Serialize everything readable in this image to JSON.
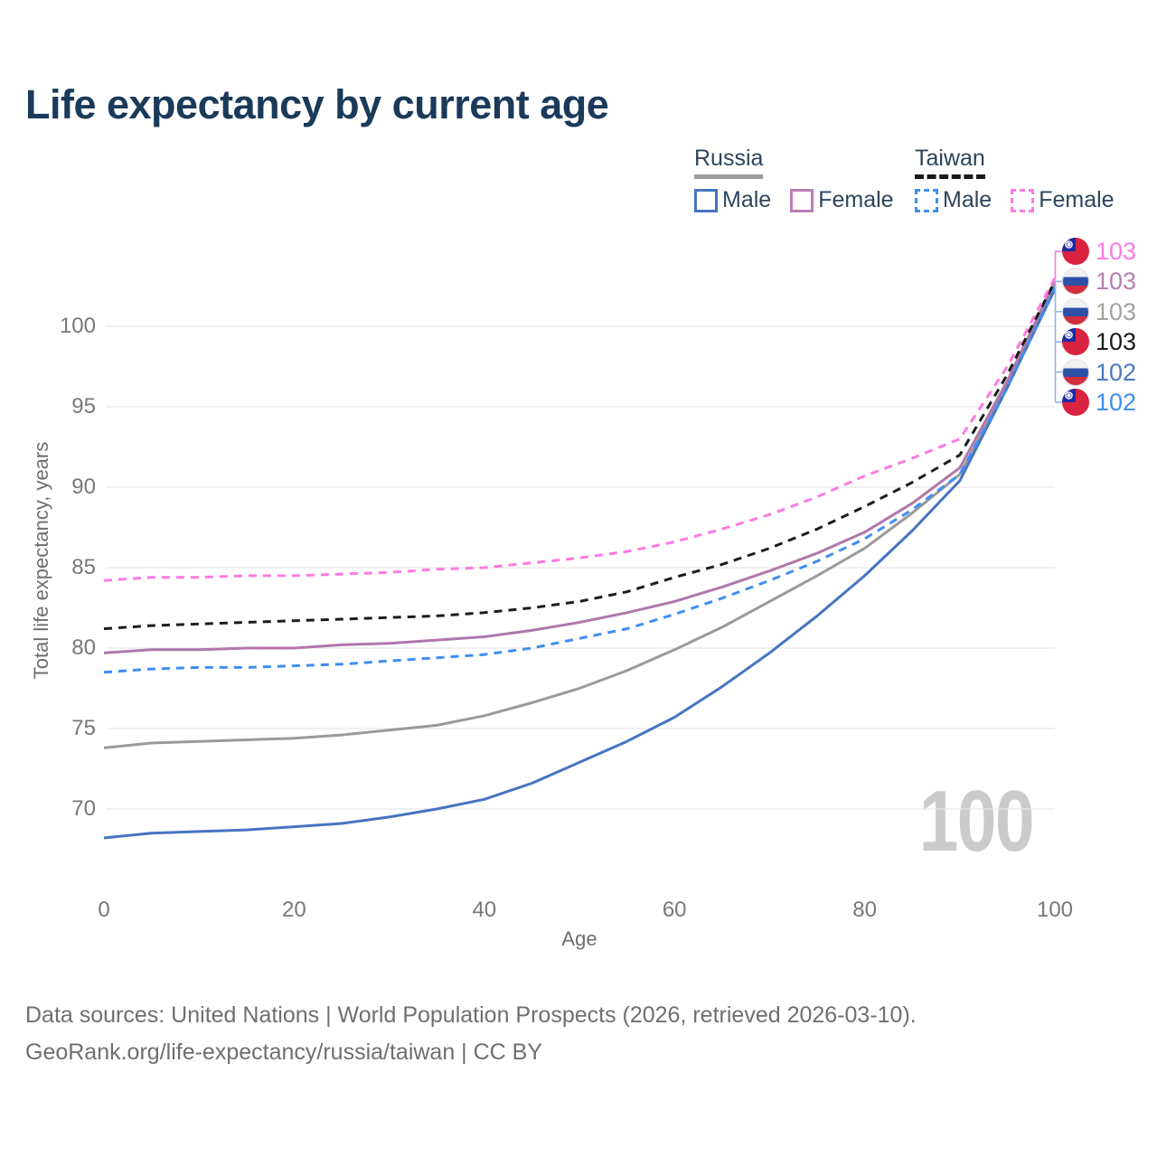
{
  "header": {
    "title": "Life expectancy by current age"
  },
  "legend": {
    "groups": [
      {
        "label": "Russia",
        "underline_style": "solid",
        "underline_color": "#9b9b9b",
        "items": [
          {
            "label": "Male",
            "color": "#4674c1",
            "dash": "solid"
          },
          {
            "label": "Female",
            "color": "#bb7eb5",
            "dash": "solid"
          }
        ]
      },
      {
        "label": "Taiwan",
        "underline_style": "dashed",
        "underline_color": "#1a1a1a",
        "items": [
          {
            "label": "Male",
            "color": "#3f8ef3",
            "dash": "dashed"
          },
          {
            "label": "Female",
            "color": "#fc7ae1",
            "dash": "dashed"
          }
        ]
      }
    ]
  },
  "chart_data": {
    "type": "line",
    "title": "Life expectancy by current age",
    "xlabel": "Age",
    "ylabel": "Total life expectancy, years",
    "xticks": [
      0,
      20,
      40,
      60,
      80,
      100
    ],
    "yticks": [
      70,
      75,
      80,
      85,
      90,
      95,
      100
    ],
    "xlim": [
      0,
      100
    ],
    "ylim": [
      66,
      104
    ],
    "grid": "horizontal",
    "legend_position": "top-right",
    "watermark": "100",
    "connector_colors": {
      "pink": "#fc7ae1",
      "blue": "#8fb3e8"
    },
    "ages": [
      0,
      5,
      10,
      15,
      20,
      25,
      30,
      35,
      40,
      45,
      50,
      55,
      60,
      65,
      70,
      75,
      80,
      85,
      90,
      95,
      100
    ],
    "series": [
      {
        "id": "russia-all",
        "name": "Russia",
        "country": "Russia",
        "sex": "Both sexes",
        "color": "#9a9a9a",
        "dash": "solid",
        "end_value": 103,
        "values": [
          73.8,
          74.1,
          74.2,
          74.3,
          74.4,
          74.6,
          74.9,
          75.2,
          75.8,
          76.6,
          77.5,
          78.6,
          79.9,
          81.3,
          82.9,
          84.5,
          86.2,
          88.4,
          90.8,
          96.3,
          102.6
        ]
      },
      {
        "id": "russia-female",
        "name": "Russia Female",
        "country": "Russia",
        "sex": "Female",
        "color": "#b077ab",
        "dash": "solid",
        "end_value": 103,
        "values": [
          79.7,
          79.9,
          79.9,
          80.0,
          80.0,
          80.2,
          80.3,
          80.5,
          80.7,
          81.1,
          81.6,
          82.2,
          82.9,
          83.8,
          84.8,
          85.9,
          87.2,
          89.0,
          91.2,
          96.6,
          102.8
        ]
      },
      {
        "id": "russia-male",
        "name": "Russia Male",
        "country": "Russia",
        "sex": "Male",
        "color": "#4674c1",
        "dash": "solid",
        "end_value": 102,
        "values": [
          68.2,
          68.5,
          68.6,
          68.7,
          68.9,
          69.1,
          69.5,
          70.0,
          70.6,
          71.6,
          72.9,
          74.2,
          75.7,
          77.6,
          79.7,
          82.0,
          84.5,
          87.3,
          90.4,
          96.2,
          102.3
        ]
      },
      {
        "id": "taiwan-all",
        "name": "Taiwan",
        "country": "Taiwan",
        "sex": "Both sexes",
        "color": "#1c1c1c",
        "dash": "dashed",
        "end_value": 103,
        "values": [
          81.2,
          81.4,
          81.5,
          81.6,
          81.7,
          81.8,
          81.9,
          82.0,
          82.2,
          82.5,
          82.9,
          83.5,
          84.4,
          85.2,
          86.2,
          87.4,
          88.8,
          90.3,
          92.0,
          97.0,
          102.8
        ]
      },
      {
        "id": "taiwan-male",
        "name": "Taiwan Male",
        "country": "Taiwan",
        "sex": "Male",
        "color": "#3f8ef3",
        "dash": "dashed",
        "end_value": 102,
        "values": [
          78.5,
          78.7,
          78.8,
          78.8,
          78.9,
          79.0,
          79.2,
          79.4,
          79.6,
          80.0,
          80.6,
          81.2,
          82.1,
          83.1,
          84.2,
          85.4,
          86.8,
          88.6,
          90.8,
          96.2,
          102.4
        ]
      },
      {
        "id": "taiwan-female",
        "name": "Taiwan Female",
        "country": "Taiwan",
        "sex": "Female",
        "color": "#fc7ae1",
        "dash": "dashed",
        "end_value": 103,
        "values": [
          84.2,
          84.4,
          84.4,
          84.5,
          84.5,
          84.6,
          84.7,
          84.9,
          85.0,
          85.3,
          85.6,
          86.0,
          86.6,
          87.4,
          88.3,
          89.4,
          90.7,
          91.8,
          93.0,
          97.5,
          103.0
        ]
      }
    ],
    "end_labels": [
      {
        "series": "taiwan-female",
        "flag": "taiwan",
        "value": "103",
        "color": "#fc7ae1"
      },
      {
        "series": "russia-female",
        "flag": "russia",
        "value": "103",
        "color": "#b57fb0"
      },
      {
        "series": "russia-all",
        "flag": "russia",
        "value": "103",
        "color": "#a3a3a3"
      },
      {
        "series": "taiwan-all",
        "flag": "taiwan",
        "value": "103",
        "color": "#1a1a1a"
      },
      {
        "series": "russia-male",
        "flag": "russia",
        "value": "102",
        "color": "#4a7ac2"
      },
      {
        "series": "taiwan-male",
        "flag": "taiwan",
        "value": "102",
        "color": "#3f8ef3"
      }
    ],
    "flag_colors": {
      "taiwan": {
        "field": "#da2340",
        "canton": "#1c2ba5",
        "sun": "#ffffff"
      },
      "russia": {
        "white": "#f1f1f1",
        "blue": "#2d50a7",
        "red": "#d22d3c"
      }
    }
  },
  "footer": {
    "line1": "Data sources: United Nations | World Population Prospects (2026, retrieved 2026-03-10).",
    "line2": "GeoRank.org/life-expectancy/russia/taiwan | CC BY"
  }
}
